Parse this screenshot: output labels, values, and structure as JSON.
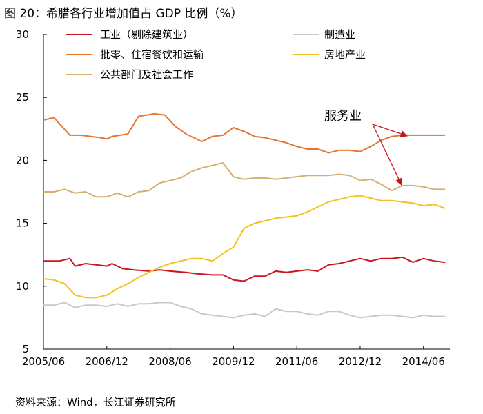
{
  "title": "图 20：希腊各行业增加值占 GDP 比例（%）",
  "source": "资料来源：Wind，长江证券研究所",
  "chart_data": {
    "type": "line",
    "title": "希腊各行业增加值占 GDP 比例（%）",
    "xlabel": "",
    "ylabel": "",
    "ylim": [
      5,
      30
    ],
    "yticks": [
      5,
      10,
      15,
      20,
      25,
      30
    ],
    "xlim": [
      2005.375,
      2015.0
    ],
    "xticks": [
      {
        "value": 2005.375,
        "label": "2005/06"
      },
      {
        "value": 2006.875,
        "label": "2006/12"
      },
      {
        "value": 2008.375,
        "label": "2008/06"
      },
      {
        "value": 2009.875,
        "label": "2009/12"
      },
      {
        "value": 2011.375,
        "label": "2011/06"
      },
      {
        "value": 2012.875,
        "label": "2012/12"
      },
      {
        "value": 2014.375,
        "label": "2014/06"
      }
    ],
    "legend_position": "top",
    "annotation": {
      "text": "服务业",
      "targets": [
        "批零、住宿餐饮和运输",
        "公共部门及社会工作"
      ]
    },
    "series": [
      {
        "name": "工业（剔除建筑业）",
        "color": "#c8161e",
        "x": [
          2005.375,
          2005.75,
          2006.0,
          2006.125,
          2006.375,
          2006.625,
          2006.875,
          2007.0,
          2007.25,
          2007.5,
          2007.875,
          2008.125,
          2008.375,
          2008.75,
          2009.0,
          2009.375,
          2009.625,
          2009.875,
          2010.125,
          2010.375,
          2010.625,
          2010.875,
          2011.125,
          2011.375,
          2011.625,
          2011.875,
          2012.125,
          2012.375,
          2012.625,
          2012.875,
          2013.125,
          2013.375,
          2013.625,
          2013.875,
          2014.125,
          2014.375,
          2014.625,
          2014.875
        ],
        "values": [
          12.0,
          12.0,
          12.2,
          11.6,
          11.8,
          11.7,
          11.6,
          11.8,
          11.4,
          11.3,
          11.2,
          11.3,
          11.2,
          11.1,
          11.0,
          10.9,
          10.9,
          10.5,
          10.4,
          10.8,
          10.8,
          11.2,
          11.1,
          11.2,
          11.3,
          11.2,
          11.7,
          11.8,
          12.0,
          12.2,
          12.0,
          12.2,
          12.2,
          12.3,
          11.9,
          12.2,
          12.0,
          11.9
        ]
      },
      {
        "name": "批零、住宿餐饮和运输",
        "color": "#e4762f",
        "x": [
          2005.375,
          2005.625,
          2006.0,
          2006.25,
          2006.5,
          2006.75,
          2006.875,
          2007.0,
          2007.375,
          2007.625,
          2008.0,
          2008.25,
          2008.5,
          2008.75,
          2009.125,
          2009.375,
          2009.625,
          2009.875,
          2010.125,
          2010.375,
          2010.625,
          2010.875,
          2011.125,
          2011.375,
          2011.625,
          2011.875,
          2012.125,
          2012.375,
          2012.625,
          2012.875,
          2013.125,
          2013.375,
          2013.625,
          2013.875,
          2014.125,
          2014.375,
          2014.625,
          2014.875
        ],
        "values": [
          23.2,
          23.4,
          22.0,
          22.0,
          21.9,
          21.8,
          21.7,
          21.9,
          22.1,
          23.5,
          23.7,
          23.6,
          22.7,
          22.1,
          21.5,
          21.9,
          22.0,
          22.6,
          22.3,
          21.9,
          21.8,
          21.6,
          21.4,
          21.1,
          20.9,
          20.9,
          20.6,
          20.8,
          20.8,
          20.7,
          21.1,
          21.6,
          21.9,
          22.0,
          22.0,
          22.0,
          22.0,
          22.0
        ]
      },
      {
        "name": "公共部门及社会工作",
        "color": "#d4b070",
        "x": [
          2005.375,
          2005.625,
          2005.875,
          2006.125,
          2006.375,
          2006.625,
          2006.875,
          2007.125,
          2007.375,
          2007.625,
          2007.875,
          2008.125,
          2008.375,
          2008.625,
          2008.875,
          2009.125,
          2009.375,
          2009.625,
          2009.875,
          2010.125,
          2010.375,
          2010.625,
          2010.875,
          2011.125,
          2011.375,
          2011.625,
          2011.875,
          2012.125,
          2012.375,
          2012.625,
          2012.875,
          2013.125,
          2013.375,
          2013.625,
          2013.875,
          2014.125,
          2014.375,
          2014.625,
          2014.875
        ],
        "values": [
          17.5,
          17.5,
          17.7,
          17.4,
          17.5,
          17.1,
          17.1,
          17.4,
          17.1,
          17.5,
          17.6,
          18.2,
          18.4,
          18.6,
          19.1,
          19.4,
          19.6,
          19.8,
          18.7,
          18.5,
          18.6,
          18.6,
          18.5,
          18.6,
          18.7,
          18.8,
          18.8,
          18.8,
          18.9,
          18.8,
          18.4,
          18.5,
          18.1,
          17.6,
          18.0,
          18.0,
          17.9,
          17.7,
          17.7
        ]
      },
      {
        "name": "制造业",
        "color": "#c8c8c8",
        "x": [
          2005.375,
          2005.625,
          2005.875,
          2006.125,
          2006.375,
          2006.625,
          2006.875,
          2007.125,
          2007.375,
          2007.625,
          2007.875,
          2008.125,
          2008.375,
          2008.625,
          2008.875,
          2009.125,
          2009.375,
          2009.625,
          2009.875,
          2010.125,
          2010.375,
          2010.625,
          2010.875,
          2011.125,
          2011.375,
          2011.625,
          2011.875,
          2012.125,
          2012.375,
          2012.625,
          2012.875,
          2013.125,
          2013.375,
          2013.625,
          2013.875,
          2014.125,
          2014.375,
          2014.625,
          2014.875
        ],
        "values": [
          8.5,
          8.5,
          8.7,
          8.3,
          8.5,
          8.5,
          8.4,
          8.6,
          8.4,
          8.6,
          8.6,
          8.7,
          8.7,
          8.4,
          8.2,
          7.8,
          7.7,
          7.6,
          7.5,
          7.7,
          7.8,
          7.6,
          8.2,
          8.0,
          8.0,
          7.8,
          7.7,
          8.0,
          8.0,
          7.7,
          7.5,
          7.6,
          7.7,
          7.7,
          7.6,
          7.5,
          7.7,
          7.6,
          7.6
        ]
      },
      {
        "name": "房地产业",
        "color": "#f4c21a",
        "x": [
          2005.375,
          2005.625,
          2005.875,
          2006.125,
          2006.375,
          2006.625,
          2006.875,
          2007.125,
          2007.375,
          2007.625,
          2007.875,
          2008.125,
          2008.375,
          2008.625,
          2008.875,
          2009.125,
          2009.375,
          2009.625,
          2009.875,
          2010.125,
          2010.375,
          2010.625,
          2010.875,
          2011.125,
          2011.375,
          2011.625,
          2011.875,
          2012.125,
          2012.375,
          2012.625,
          2012.875,
          2013.125,
          2013.375,
          2013.625,
          2013.875,
          2014.125,
          2014.375,
          2014.625,
          2014.875
        ],
        "values": [
          10.6,
          10.5,
          10.2,
          9.3,
          9.1,
          9.1,
          9.3,
          9.8,
          10.2,
          10.7,
          11.1,
          11.5,
          11.8,
          12.0,
          12.2,
          12.2,
          12.0,
          12.6,
          13.1,
          14.6,
          15.0,
          15.2,
          15.4,
          15.5,
          15.6,
          15.9,
          16.3,
          16.7,
          16.9,
          17.1,
          17.2,
          17.0,
          16.8,
          16.8,
          16.7,
          16.6,
          16.4,
          16.5,
          16.2
        ]
      }
    ],
    "legend": [
      {
        "name": "工业（剔除建筑业）",
        "color": "#c8161e"
      },
      {
        "name": "制造业",
        "color": "#c8c8c8"
      },
      {
        "name": "批零、住宿餐饮和运输",
        "color": "#e4762f"
      },
      {
        "name": "房地产业",
        "color": "#f4c21a"
      },
      {
        "name": "公共部门及社会工作",
        "color": "#d4b070"
      }
    ]
  }
}
